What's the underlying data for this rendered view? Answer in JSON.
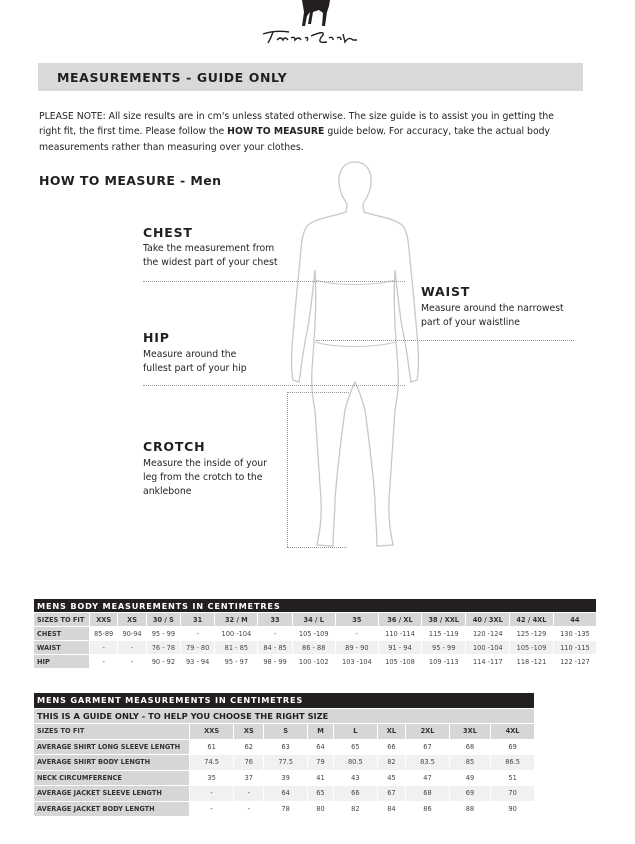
{
  "logo": {
    "brand": "Thomas Cook",
    "icon": "horse-logo-icon"
  },
  "header": {
    "title": "MEASUREMENTS - GUIDE ONLY"
  },
  "note": {
    "prefix": "PLEASE NOTE:  All size results are in cm's unless stated otherwise. The size guide is to assist you in getting the right fit, the first time. Please follow the ",
    "emphasis": "HOW TO MEASURE",
    "suffix": " guide below. For accuracy, take the actual body measurements rather than measuring over your clothes."
  },
  "how_to": {
    "title": "HOW TO MEASURE - Men",
    "figure_icon": "male-body-silhouette-icon",
    "items": [
      {
        "label": "CHEST",
        "description": [
          "Take the measurement from",
          "the widest part of your chest"
        ]
      },
      {
        "label": "WAIST",
        "description": [
          "Measure around the narrowest",
          "part of  your waistline"
        ]
      },
      {
        "label": "HIP",
        "description": [
          "Measure around the",
          "fullest part of your hip"
        ]
      },
      {
        "label": "CROTCH",
        "description": [
          "Measure the inside of your",
          "leg from the crotch to the",
          "anklebone"
        ]
      }
    ]
  },
  "body_table": {
    "title": "MENS BODY MEASUREMENTS IN CENTIMETRES",
    "header": [
      "SIZES TO FIT",
      "XXS",
      "XS",
      "30 / S",
      "31",
      "32 / M",
      "33",
      "34 / L",
      "35",
      "36 / XL",
      "38 / XXL",
      "40 / 3XL",
      "42 / 4XL",
      "44"
    ],
    "rows": [
      [
        "CHEST",
        "85-89",
        "90-94",
        "95 - 99",
        "-",
        "100 -104",
        "-",
        "105 -109",
        "-",
        "110 -114",
        "115 -119",
        "120 -124",
        "125 -129",
        "130 -135"
      ],
      [
        "WAIST",
        "-",
        "-",
        "76 - 78",
        "79 - 80",
        "81 - 85",
        "84 - 85",
        "86 - 88",
        "89 - 90",
        "91 - 94",
        "95 - 99",
        "100 -104",
        "105 -109",
        "110 -115"
      ],
      [
        "HIP",
        "-",
        "-",
        "90 - 92",
        "93 - 94",
        "95 - 97",
        "98 - 99",
        "100 -102",
        "103 -104",
        "105 -108",
        "109 -113",
        "114 -117",
        "118 -121",
        "122 -127"
      ]
    ]
  },
  "garment_table": {
    "title": "MENS GARMENT MEASUREMENTS IN CENTIMETRES",
    "subtitle": "THIS IS A GUIDE ONLY - TO HELP YOU CHOOSE THE RIGHT SIZE",
    "header": [
      "SIZES TO FIT",
      "XXS",
      "XS",
      "S",
      "M",
      "L",
      "XL",
      "2XL",
      "3XL",
      "4XL"
    ],
    "rows": [
      [
        "AVERAGE SHIRT LONG SLEEVE LENGTH",
        "61",
        "62",
        "63",
        "64",
        "65",
        "66",
        "67",
        "68",
        "69"
      ],
      [
        "AVERAGE SHIRT BODY LENGTH",
        "74.5",
        "76",
        "77.5",
        "79",
        "80.5",
        "82",
        "83.5",
        "85",
        "86.5"
      ],
      [
        "NECK CIRCUMFERENCE",
        "35",
        "37",
        "39",
        "41",
        "43",
        "45",
        "47",
        "49",
        "51"
      ],
      [
        "AVERAGE JACKET SLEEVE LENGTH",
        "-",
        "-",
        "64",
        "65",
        "66",
        "67",
        "68",
        "69",
        "70"
      ],
      [
        "AVERAGE JACKET BODY LENGTH",
        "-",
        "-",
        "78",
        "80",
        "82",
        "84",
        "86",
        "88",
        "90"
      ]
    ]
  }
}
